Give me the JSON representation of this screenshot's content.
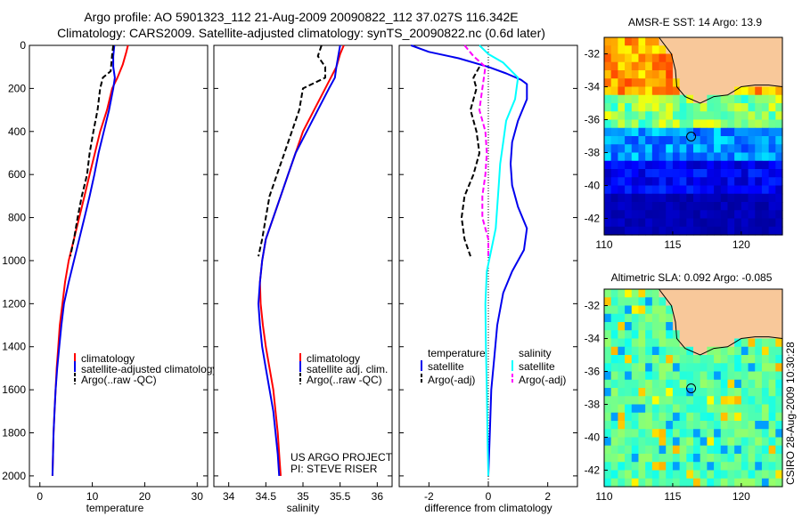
{
  "header": {
    "line1": "Argo profile: AO 5901323_112 21-Aug-2009 20090822_112 37.027S 116.342E",
    "line2": "Climatology: CARS2009. Satellite-adjusted climatology: synTS_20090822.nc (0.6d later)"
  },
  "credit": "US ARGO PROJECT",
  "pi": "PI: STEVE RISER",
  "stamp": "CSIRO 28-Aug-2009 10:30:28",
  "colors": {
    "climatology": "#ff0000",
    "satellite": "#0000ee",
    "argo": "#000000",
    "sal_satellite": "#00ffff",
    "sal_argo": "#ff00ff",
    "land": "#f8c89a"
  },
  "chart_data": [
    {
      "type": "line",
      "xlabel": "temperature",
      "xlim": [
        -2,
        32
      ],
      "ylim": [
        2050,
        0
      ],
      "x_ticks": [
        0,
        10,
        20,
        30
      ],
      "y_ticks": [
        0,
        200,
        400,
        600,
        800,
        1000,
        1200,
        1400,
        1600,
        1800,
        2000
      ],
      "legend_placement": "lower-right",
      "series": [
        {
          "name": "climatology",
          "color": "#ff0000",
          "style": "solid",
          "points": [
            [
              16.8,
              0
            ],
            [
              16.5,
              30
            ],
            [
              15.8,
              90
            ],
            [
              14.8,
              150
            ],
            [
              13.8,
              200
            ],
            [
              12.8,
              300
            ],
            [
              11.5,
              400
            ],
            [
              10.5,
              500
            ],
            [
              9.5,
              600
            ],
            [
              8.5,
              700
            ],
            [
              7.5,
              800
            ],
            [
              6.5,
              900
            ],
            [
              5.5,
              1000
            ],
            [
              4.8,
              1100
            ],
            [
              4.3,
              1200
            ],
            [
              3.8,
              1300
            ],
            [
              3.5,
              1400
            ],
            [
              3.2,
              1500
            ],
            [
              3.0,
              1600
            ],
            [
              2.8,
              1700
            ],
            [
              2.6,
              1800
            ],
            [
              2.5,
              1900
            ],
            [
              2.4,
              2000
            ]
          ]
        },
        {
          "name": "satellite-adjusted climatology",
          "color": "#0000ee",
          "style": "solid",
          "points": [
            [
              14.2,
              0
            ],
            [
              14.0,
              50
            ],
            [
              14.0,
              100
            ],
            [
              14.3,
              150
            ],
            [
              14.0,
              200
            ],
            [
              13.2,
              300
            ],
            [
              12.2,
              400
            ],
            [
              11.2,
              500
            ],
            [
              10.4,
              600
            ],
            [
              9.5,
              700
            ],
            [
              8.5,
              800
            ],
            [
              7.5,
              900
            ],
            [
              6.5,
              1000
            ],
            [
              5.5,
              1100
            ],
            [
              4.6,
              1200
            ],
            [
              4.1,
              1300
            ],
            [
              3.7,
              1400
            ],
            [
              3.3,
              1500
            ],
            [
              3.0,
              1600
            ],
            [
              2.8,
              1700
            ],
            [
              2.6,
              1800
            ],
            [
              2.5,
              1900
            ],
            [
              2.4,
              2000
            ]
          ]
        },
        {
          "name": "Argo(..raw -QC)",
          "color": "#000000",
          "style": "dashed",
          "points": [
            [
              14.0,
              0
            ],
            [
              13.8,
              40
            ],
            [
              13.5,
              120
            ],
            [
              12.0,
              150
            ],
            [
              11.5,
              200
            ],
            [
              11.0,
              300
            ],
            [
              10.2,
              400
            ],
            [
              9.5,
              500
            ],
            [
              9.0,
              600
            ],
            [
              8.0,
              700
            ],
            [
              7.2,
              800
            ],
            [
              6.5,
              900
            ],
            [
              5.8,
              980
            ]
          ]
        }
      ]
    },
    {
      "type": "line",
      "xlabel": "salinity",
      "xlim": [
        33.8,
        36.2
      ],
      "ylim": [
        2050,
        0
      ],
      "x_ticks": [
        34,
        34.5,
        35,
        35.5,
        36
      ],
      "legend_placement": "lower-right",
      "series": [
        {
          "name": "climatology",
          "color": "#ff0000",
          "style": "solid",
          "points": [
            [
              35.55,
              0
            ],
            [
              35.5,
              40
            ],
            [
              35.45,
              100
            ],
            [
              35.3,
              200
            ],
            [
              35.15,
              300
            ],
            [
              35.0,
              400
            ],
            [
              34.9,
              500
            ],
            [
              34.8,
              600
            ],
            [
              34.7,
              700
            ],
            [
              34.6,
              800
            ],
            [
              34.5,
              900
            ],
            [
              34.45,
              1000
            ],
            [
              34.42,
              1100
            ],
            [
              34.43,
              1200
            ],
            [
              34.46,
              1300
            ],
            [
              34.5,
              1400
            ],
            [
              34.55,
              1500
            ],
            [
              34.6,
              1600
            ],
            [
              34.63,
              1700
            ],
            [
              34.66,
              1800
            ],
            [
              34.68,
              1900
            ],
            [
              34.7,
              2000
            ]
          ]
        },
        {
          "name": "satellite adj. clim.",
          "color": "#0000ee",
          "style": "solid",
          "points": [
            [
              35.5,
              0
            ],
            [
              35.48,
              40
            ],
            [
              35.45,
              100
            ],
            [
              35.43,
              150
            ],
            [
              35.35,
              200
            ],
            [
              35.2,
              300
            ],
            [
              35.05,
              400
            ],
            [
              34.9,
              500
            ],
            [
              34.8,
              600
            ],
            [
              34.7,
              700
            ],
            [
              34.6,
              800
            ],
            [
              34.5,
              900
            ],
            [
              34.45,
              1000
            ],
            [
              34.42,
              1100
            ],
            [
              34.4,
              1200
            ],
            [
              34.42,
              1300
            ],
            [
              34.45,
              1400
            ],
            [
              34.5,
              1500
            ],
            [
              34.55,
              1600
            ],
            [
              34.6,
              1700
            ],
            [
              34.63,
              1800
            ],
            [
              34.66,
              1900
            ],
            [
              34.68,
              2000
            ]
          ]
        },
        {
          "name": "Argo(..raw -QC)",
          "color": "#000000",
          "style": "dashed",
          "points": [
            [
              35.25,
              0
            ],
            [
              35.2,
              50
            ],
            [
              35.3,
              100
            ],
            [
              35.3,
              150
            ],
            [
              35.0,
              200
            ],
            [
              34.95,
              300
            ],
            [
              34.85,
              400
            ],
            [
              34.75,
              500
            ],
            [
              34.65,
              600
            ],
            [
              34.55,
              700
            ],
            [
              34.5,
              800
            ],
            [
              34.45,
              900
            ],
            [
              34.4,
              980
            ]
          ]
        }
      ]
    },
    {
      "type": "line",
      "xlabel": "difference from climatology",
      "xlim": [
        -3,
        3
      ],
      "ylim": [
        2050,
        0
      ],
      "x_ticks": [
        -2,
        0,
        2
      ],
      "legend_placement": "lower-right",
      "legend_headers": [
        "temperature",
        "salinity"
      ],
      "series": [
        {
          "name": "satellite",
          "group": "temperature",
          "color": "#0000ee",
          "style": "solid",
          "points": [
            [
              -2.6,
              0
            ],
            [
              -2.0,
              30
            ],
            [
              -1.0,
              60
            ],
            [
              0.0,
              100
            ],
            [
              0.6,
              130
            ],
            [
              1.1,
              160
            ],
            [
              1.3,
              180
            ],
            [
              1.3,
              250
            ],
            [
              1.0,
              350
            ],
            [
              0.8,
              450
            ],
            [
              0.75,
              550
            ],
            [
              0.8,
              650
            ],
            [
              1.0,
              750
            ],
            [
              1.3,
              850
            ],
            [
              1.2,
              950
            ],
            [
              0.8,
              1050
            ],
            [
              0.5,
              1150
            ],
            [
              0.3,
              1300
            ],
            [
              0.2,
              1450
            ],
            [
              0.1,
              1600
            ],
            [
              0.05,
              1800
            ],
            [
              0.0,
              2000
            ]
          ]
        },
        {
          "name": "Argo(-adj)",
          "group": "temperature",
          "color": "#000000",
          "style": "dashed",
          "points": [
            [
              -0.3,
              100
            ],
            [
              -0.5,
              150
            ],
            [
              -0.4,
              200
            ],
            [
              -0.6,
              300
            ],
            [
              -0.4,
              400
            ],
            [
              -0.3,
              500
            ],
            [
              -0.5,
              600
            ],
            [
              -0.8,
              700
            ],
            [
              -0.9,
              800
            ],
            [
              -0.8,
              900
            ],
            [
              -0.6,
              980
            ]
          ]
        },
        {
          "name": "satellite",
          "group": "salinity",
          "color": "#00ffff",
          "style": "solid",
          "points": [
            [
              -0.3,
              0
            ],
            [
              0.0,
              40
            ],
            [
              0.5,
              80
            ],
            [
              1.0,
              150
            ],
            [
              0.9,
              250
            ],
            [
              0.6,
              350
            ],
            [
              0.5,
              450
            ],
            [
              0.4,
              550
            ],
            [
              0.35,
              650
            ],
            [
              0.3,
              750
            ],
            [
              0.25,
              850
            ],
            [
              0.1,
              950
            ],
            [
              -0.05,
              1050
            ],
            [
              -0.1,
              1200
            ],
            [
              -0.08,
              1400
            ],
            [
              -0.05,
              1600
            ],
            [
              -0.03,
              1800
            ],
            [
              0.0,
              2000
            ]
          ]
        },
        {
          "name": "Argo(-adj)",
          "group": "salinity",
          "color": "#ff00ff",
          "style": "dashed",
          "points": [
            [
              -0.8,
              0
            ],
            [
              -0.5,
              50
            ],
            [
              -0.1,
              100
            ],
            [
              -0.2,
              200
            ],
            [
              -0.3,
              300
            ],
            [
              -0.1,
              400
            ],
            [
              -0.05,
              500
            ],
            [
              -0.1,
              600
            ],
            [
              -0.2,
              700
            ],
            [
              -0.2,
              800
            ],
            [
              0.0,
              900
            ],
            [
              0.0,
              980
            ]
          ]
        }
      ]
    },
    {
      "type": "heatmap",
      "title": "AMSR-E SST: 14 Argo: 13.9",
      "xlim": [
        110,
        123
      ],
      "ylim": [
        -43,
        -31
      ],
      "x_ticks": [
        110,
        115,
        120
      ],
      "y_ticks": [
        -32,
        -34,
        -36,
        -38,
        -40,
        -42
      ],
      "marker": {
        "lon": 116.342,
        "lat": -37.027
      },
      "coast": [
        [
          114.0,
          -31.0
        ],
        [
          114.9,
          -32.0
        ],
        [
          115.2,
          -33.0
        ],
        [
          115.3,
          -34.0
        ],
        [
          115.9,
          -34.6
        ],
        [
          117.0,
          -35.0
        ],
        [
          118.0,
          -34.6
        ],
        [
          119.0,
          -34.5
        ],
        [
          120.0,
          -34.0
        ],
        [
          121.0,
          -33.9
        ],
        [
          122.0,
          -33.9
        ],
        [
          123.0,
          -34.0
        ]
      ]
    },
    {
      "type": "heatmap",
      "title": "Altimetric SLA: 0.092 Argo: -0.085",
      "xlim": [
        110,
        123
      ],
      "ylim": [
        -43,
        -31
      ],
      "x_ticks": [
        110,
        115,
        120
      ],
      "y_ticks": [
        -32,
        -34,
        -36,
        -38,
        -40,
        -42
      ],
      "marker": {
        "lon": 116.342,
        "lat": -37.027
      },
      "coast": [
        [
          114.0,
          -31.0
        ],
        [
          114.9,
          -32.0
        ],
        [
          115.2,
          -33.0
        ],
        [
          115.3,
          -34.0
        ],
        [
          115.9,
          -34.6
        ],
        [
          117.0,
          -35.0
        ],
        [
          118.0,
          -34.6
        ],
        [
          119.0,
          -34.5
        ],
        [
          120.0,
          -34.0
        ],
        [
          121.0,
          -33.9
        ],
        [
          122.0,
          -33.9
        ],
        [
          123.0,
          -34.0
        ]
      ]
    }
  ]
}
